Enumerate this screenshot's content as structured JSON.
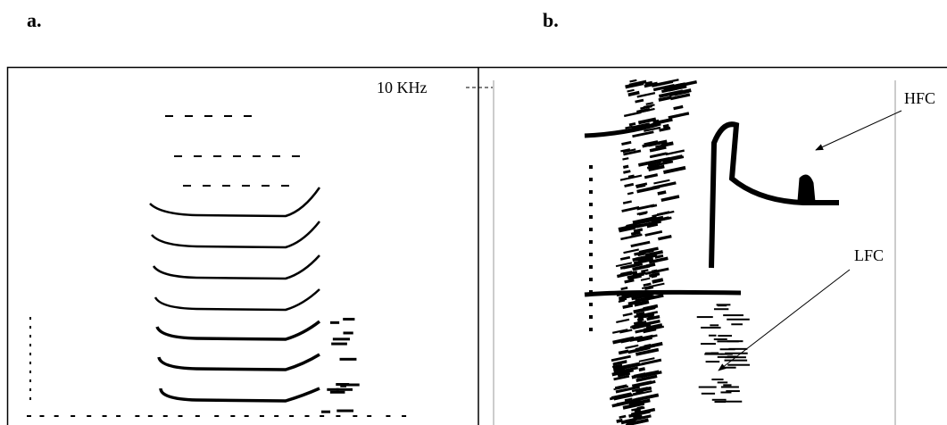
{
  "panels": [
    {
      "label": "a."
    },
    {
      "label": "b."
    }
  ],
  "annotations": {
    "frequency_marker": "10 KHz",
    "high_component": "HFC",
    "low_component": "LFC"
  }
}
